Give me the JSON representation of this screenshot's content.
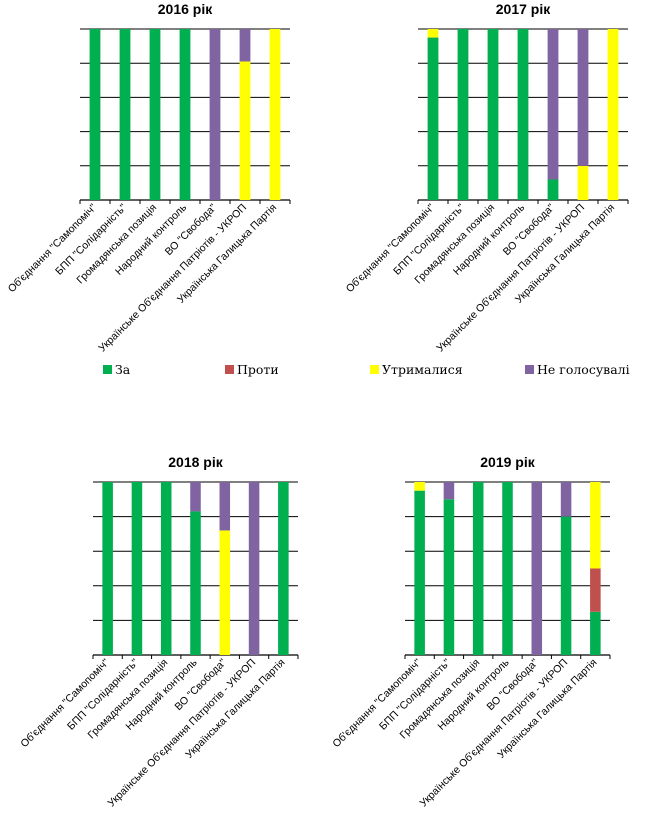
{
  "colors": {
    "За": "#00b050",
    "Проти": "#c0504d",
    "Утрималися": "#ffff00",
    "Не голосували": "#8064a2"
  },
  "legend": {
    "items": [
      "За",
      "Проти",
      "Утрималися",
      "Не голосували"
    ],
    "visible_text": [
      "За",
      "Проти",
      "Утрималися",
      "Не голосувалі"
    ]
  },
  "chart_data": [
    {
      "type": "bar",
      "stacked": true,
      "title": "2016 рік",
      "categories": [
        "Об'єднання \"Самопоміч\"",
        "БПП \"Солідарність\"",
        "Громадянська позиція",
        "Народний контроль",
        "ВО \"Свобода\"",
        "Українське Об'єднання Патріотів - УКРОП",
        "Українська Галицька Партія"
      ],
      "series": [
        {
          "name": "За",
          "values": [
            1,
            1,
            1,
            1,
            0,
            0,
            0
          ]
        },
        {
          "name": "Проти",
          "values": [
            0,
            0,
            0,
            0,
            0,
            0,
            0
          ]
        },
        {
          "name": "Утрималися",
          "values": [
            0,
            0,
            0,
            0,
            0,
            0.81,
            1
          ]
        },
        {
          "name": "Не голосували",
          "values": [
            0,
            0,
            0,
            0,
            1,
            0.19,
            0
          ]
        }
      ],
      "ylim": [
        0,
        1
      ],
      "grid": true
    },
    {
      "type": "bar",
      "stacked": true,
      "title": "2017 рік",
      "categories": [
        "Об'єднання \"Самопоміч\"",
        "БПП \"Солідарність\"",
        "Громадянська позиція",
        "Народний контроль",
        "ВО \"Свобода\"",
        "Українське Об'єднання Патріотів - УКРОП",
        "Українська Галицька Партія"
      ],
      "series": [
        {
          "name": "За",
          "values": [
            0.95,
            1,
            1,
            1,
            0.12,
            0,
            0
          ]
        },
        {
          "name": "Проти",
          "values": [
            0,
            0,
            0,
            0,
            0,
            0,
            0
          ]
        },
        {
          "name": "Утрималися",
          "values": [
            0.05,
            0,
            0,
            0,
            0,
            0.2,
            1
          ]
        },
        {
          "name": "Не голосували",
          "values": [
            0,
            0,
            0,
            0,
            0.88,
            0.8,
            0
          ]
        }
      ],
      "ylim": [
        0,
        1
      ],
      "grid": true
    },
    {
      "type": "bar",
      "stacked": true,
      "title": "2018 рік",
      "categories": [
        "Об'єднання \"Самопоміч\"",
        "БПП \"Солідарність\"",
        "Громадянська позиція",
        "Народний контроль",
        "ВО \"Свобода\"",
        "Українське Об'єднання Патріотів - УКРОП",
        "Українська Галицька Партія"
      ],
      "series": [
        {
          "name": "За",
          "values": [
            1,
            1,
            1,
            0.83,
            0,
            0,
            1
          ]
        },
        {
          "name": "Проти",
          "values": [
            0,
            0,
            0,
            0,
            0,
            0,
            0
          ]
        },
        {
          "name": "Утрималися",
          "values": [
            0,
            0,
            0,
            0,
            0.72,
            0,
            0
          ]
        },
        {
          "name": "Не голосували",
          "values": [
            0,
            0,
            0,
            0.17,
            0.28,
            1,
            0
          ]
        }
      ],
      "ylim": [
        0,
        1
      ],
      "grid": true
    },
    {
      "type": "bar",
      "stacked": true,
      "title": "2019 рік",
      "categories": [
        "Об'єднання \"Самопоміч\"",
        "БПП \"Солідарність\"",
        "Громадянська позиція",
        "Народний контроль",
        "ВО \"Свобода\"",
        "Українське Об'єднання Патріотів - УКРОП",
        "Українська Галицька Партія"
      ],
      "series": [
        {
          "name": "За",
          "values": [
            0.95,
            0.9,
            1,
            1,
            0,
            0.8,
            0.25
          ]
        },
        {
          "name": "Проти",
          "values": [
            0,
            0,
            0,
            0,
            0,
            0,
            0.25
          ]
        },
        {
          "name": "Утрималися",
          "values": [
            0.05,
            0,
            0,
            0,
            0,
            0,
            0.5
          ]
        },
        {
          "name": "Не голосували",
          "values": [
            0,
            0.1,
            0,
            0,
            1,
            0.2,
            0
          ]
        }
      ],
      "ylim": [
        0,
        1
      ],
      "grid": true
    }
  ]
}
